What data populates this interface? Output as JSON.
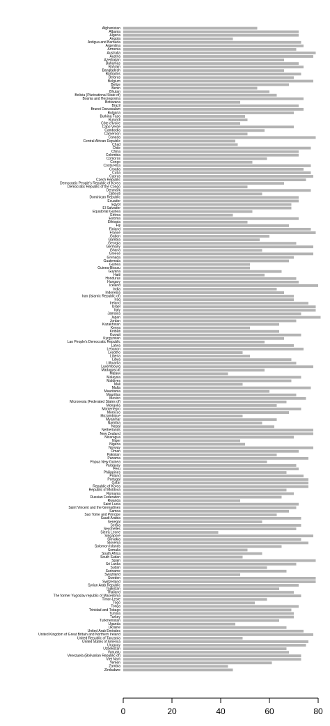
{
  "chart_data": {
    "type": "bar",
    "orientation": "horizontal",
    "color": "#b3b3b3",
    "categories": [
      "Afghanistan",
      "Albania",
      "Algeria",
      "Angola",
      "Antigua and Barbuda",
      "Argentina",
      "Armenia",
      "Australia",
      "Austria",
      "Azerbaijan",
      "Bahamas",
      "Bahrain",
      "Bangladesh",
      "Barbados",
      "Belarus",
      "Belgium",
      "Belize",
      "Benin",
      "Bhutan",
      "Bolivia (Plurinational State of)",
      "Bosnia and Herzegovina",
      "Botswana",
      "Brazil",
      "Brunei Darussalam",
      "Bulgaria",
      "Burkina Faso",
      "Burundi",
      "Côte d'Ivoire",
      "Cabo Verde",
      "Cambodia",
      "Cameroon",
      "Canada",
      "Central African Republic",
      "Chad",
      "Chile",
      "China",
      "Colombia",
      "Comoros",
      "Congo",
      "Costa Rica",
      "Croatia",
      "Cuba",
      "Cyprus",
      "Czech Republic",
      "Democratic People's Republic of Korea",
      "Democratic Republic of the Congo",
      "Denmark",
      "Djibouti",
      "Dominican Republic",
      "Ecuador",
      "Egypt",
      "El Salvador",
      "Equatorial Guinea",
      "Eritrea",
      "Estonia",
      "Ethiopia",
      "Fiji",
      "Finland",
      "France",
      "Gabon",
      "Gambia",
      "Georgia",
      "Germany",
      "Ghana",
      "Greece",
      "Grenada",
      "Guatemala",
      "Guinea",
      "Guinea-Bissau",
      "Guyana",
      "Haiti",
      "Honduras",
      "Hungary",
      "Iceland",
      "India",
      "Indonesia",
      "Iran (Islamic Republic of)",
      "Iraq",
      "Ireland",
      "Israel",
      "Italy",
      "Jamaica",
      "Japan",
      "Jordan",
      "Kazakhstan",
      "Kenya",
      "Kiribati",
      "Kuwait",
      "Kyrgyzstan",
      "Lao People's Democratic Republic",
      "Latvia",
      "Lebanon",
      "Lesotho",
      "Liberia",
      "Libya",
      "Lithuania",
      "Luxembourg",
      "Madagascar",
      "Malawi",
      "Malaysia",
      "Maldives",
      "Mali",
      "Malta",
      "Mauritania",
      "Mauritius",
      "Mexico",
      "Micronesia (Federated States of)",
      "Mongolia",
      "Montenegro",
      "Morocco",
      "Mozambique",
      "Myanmar",
      "Namibia",
      "Nepal",
      "Netherlands",
      "New Zealand",
      "Nicaragua",
      "Niger",
      "Nigeria",
      "Norway",
      "Oman",
      "Pakistan",
      "Panama",
      "Papua New Guinea",
      "Paraguay",
      "Peru",
      "Philippines",
      "Poland",
      "Portugal",
      "Qatar",
      "Republic of Korea",
      "Republic of Moldova",
      "Romania",
      "Russian Federation",
      "Rwanda",
      "Saint Lucia",
      "Saint Vincent and the Grenadines",
      "Samoa",
      "Sao Tome and Principe",
      "Saudi Arabia",
      "Senegal",
      "Serbia",
      "Seychelles",
      "Sierra Leone",
      "Singapore",
      "Slovakia",
      "Slovenia",
      "Solomon Islands",
      "Somalia",
      "South Africa",
      "South Sudan",
      "Spain",
      "Sri Lanka",
      "Sudan",
      "Suriname",
      "Swaziland",
      "Sweden",
      "Switzerland",
      "Syrian Arab Republic",
      "Tajikistan",
      "Thailand",
      "The former Yugoslav republic of Macedonia",
      "Timor-Leste",
      "Togo",
      "Tonga",
      "Trinidad and Tobago",
      "Tunisia",
      "Turkey",
      "Turkmenistan",
      "Uganda",
      "Ukraine",
      "United Arab Emirates",
      "United Kingdom of Great Britain and Northern Ireland",
      "United Republic of Tanzania",
      "United States of America",
      "Uruguay",
      "Uzbekistan",
      "Vanuatu",
      "Venezuela (Bolivarian Republic of)",
      "Viet Nam",
      "Yemen",
      "Zambia",
      "Zimbabwe"
    ],
    "values": [
      55,
      72,
      72,
      45,
      73,
      74,
      71,
      79,
      78,
      66,
      72,
      74,
      66,
      73,
      70,
      78,
      68,
      55,
      60,
      63,
      74,
      48,
      72,
      74,
      70,
      50,
      51,
      48,
      70,
      58,
      51,
      79,
      46,
      47,
      77,
      72,
      72,
      59,
      53,
      77,
      74,
      77,
      78,
      75,
      66,
      51,
      77,
      57,
      72,
      72,
      69,
      69,
      53,
      45,
      72,
      51,
      68,
      77,
      79,
      60,
      56,
      71,
      78,
      57,
      78,
      70,
      68,
      52,
      52,
      65,
      58,
      71,
      72,
      80,
      63,
      66,
      70,
      70,
      76,
      79,
      79,
      73,
      81,
      71,
      64,
      52,
      64,
      73,
      66,
      58,
      70,
      74,
      49,
      52,
      69,
      71,
      78,
      58,
      43,
      73,
      69,
      49,
      77,
      60,
      71,
      75,
      67,
      63,
      73,
      68,
      49,
      63,
      57,
      62,
      78,
      78,
      70,
      48,
      50,
      78,
      72,
      63,
      76,
      59,
      71,
      72,
      67,
      74,
      76,
      76,
      76,
      67,
      70,
      65,
      48,
      72,
      71,
      68,
      63,
      73,
      57,
      73,
      71,
      39,
      78,
      73,
      76,
      65,
      51,
      57,
      49,
      79,
      71,
      59,
      67,
      48,
      79,
      79,
      72,
      64,
      70,
      73,
      59,
      54,
      72,
      69,
      70,
      70,
      64,
      46,
      67,
      74,
      78,
      49,
      76,
      75,
      67,
      68,
      73,
      73,
      61,
      43,
      45
    ],
    "xlim": [
      0,
      80
    ],
    "xticks": [
      0,
      20,
      40,
      60,
      80
    ]
  }
}
